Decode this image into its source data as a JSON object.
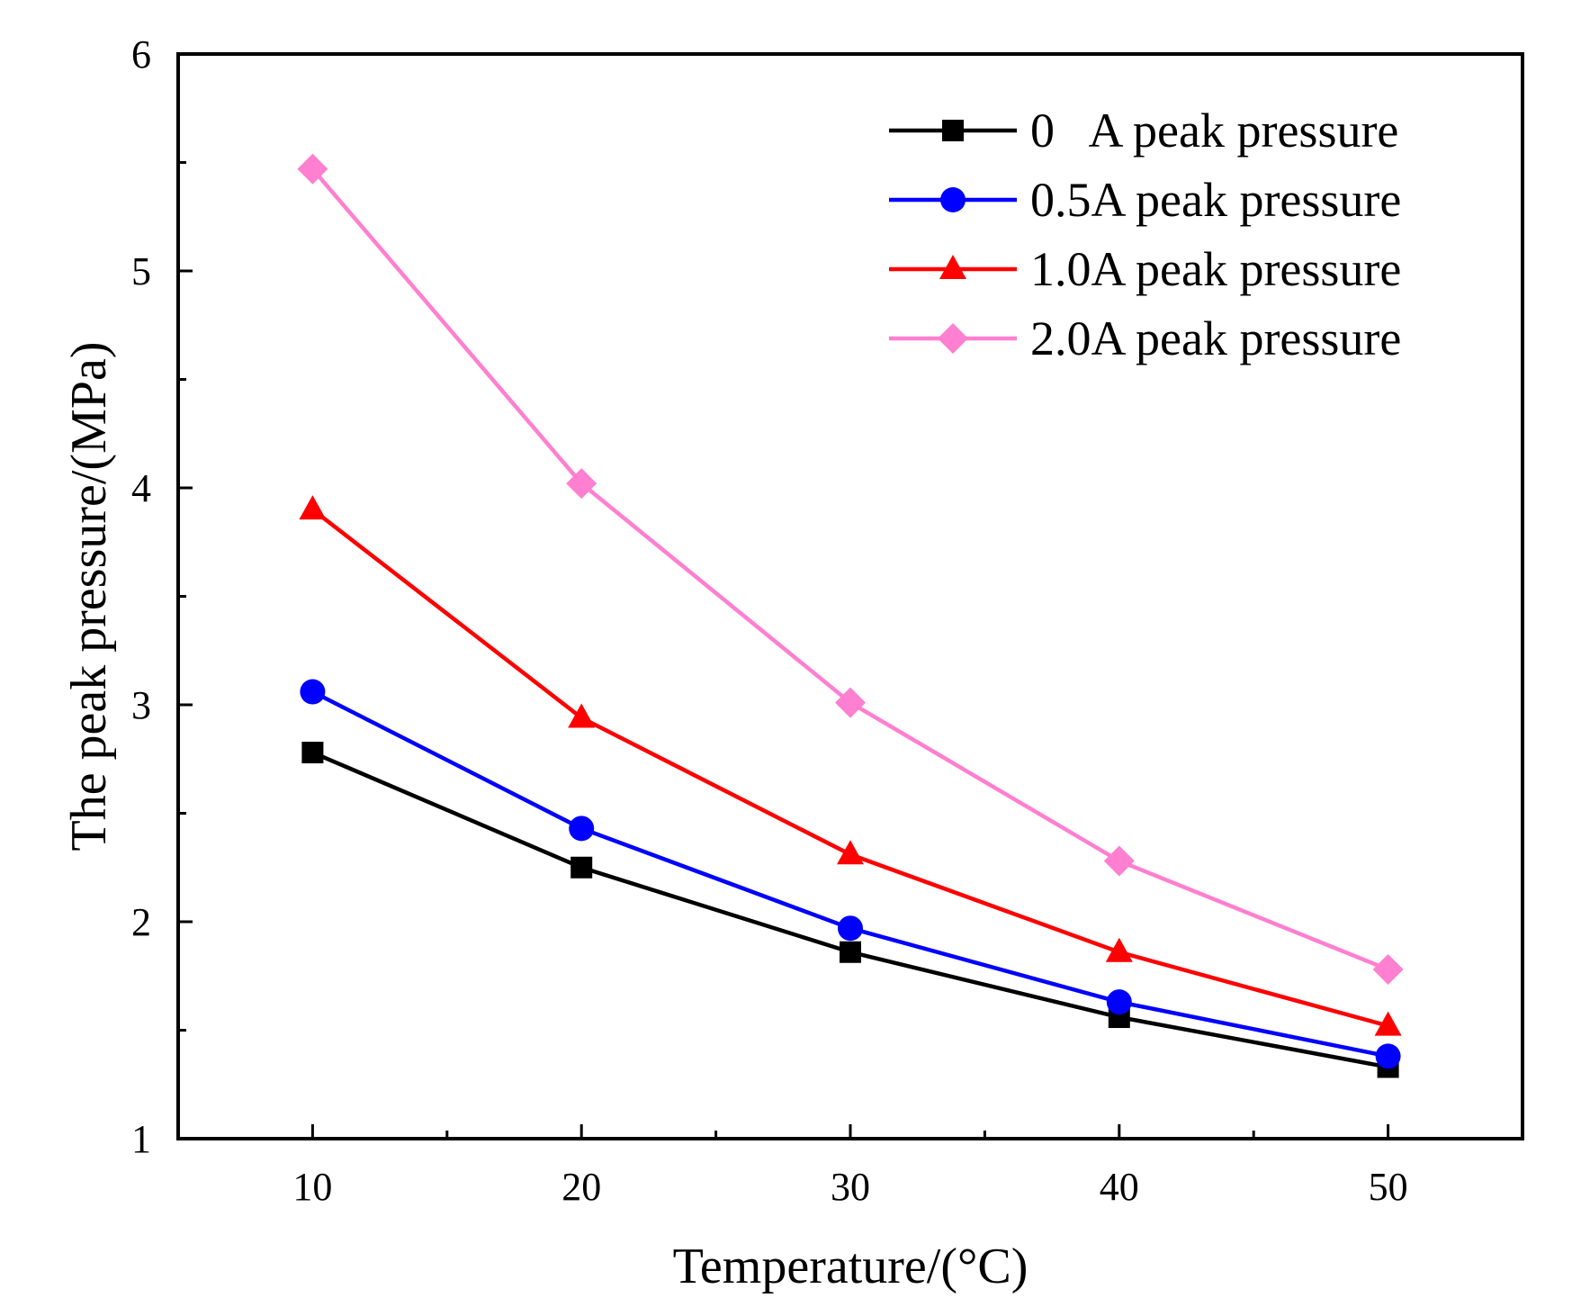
{
  "chart_data": {
    "type": "line",
    "title": "",
    "xlabel": "Temperature/(°C)",
    "ylabel": "The peak pressure/(MPa)",
    "x": [
      10,
      20,
      30,
      40,
      50
    ],
    "xlim": [
      5,
      55
    ],
    "ylim": [
      1,
      6
    ],
    "xticks": [
      10,
      20,
      30,
      40,
      50
    ],
    "xtick_labels": [
      "10",
      "20",
      "30",
      "40",
      "50"
    ],
    "yticks": [
      1,
      2,
      3,
      4,
      5,
      6
    ],
    "ytick_labels": [
      "1",
      "2",
      "3",
      "4",
      "5",
      "6"
    ],
    "grid": false,
    "legend_position": "top-right",
    "series": [
      {
        "name": "0   A peak pressure",
        "marker": "square",
        "color": "#000000",
        "values": [
          2.78,
          2.25,
          1.86,
          1.56,
          1.33
        ]
      },
      {
        "name": "0.5A peak pressure",
        "marker": "circle",
        "color": "#0000ff",
        "values": [
          3.06,
          2.43,
          1.97,
          1.63,
          1.38
        ]
      },
      {
        "name": "1.0A peak pressure",
        "marker": "triangle",
        "color": "#ff0000",
        "values": [
          3.9,
          2.94,
          2.31,
          1.86,
          1.52
        ]
      },
      {
        "name": "2.0A peak pressure",
        "marker": "diamond",
        "color": "#ff7fd0",
        "values": [
          5.47,
          4.02,
          3.01,
          2.28,
          1.78
        ]
      }
    ]
  }
}
